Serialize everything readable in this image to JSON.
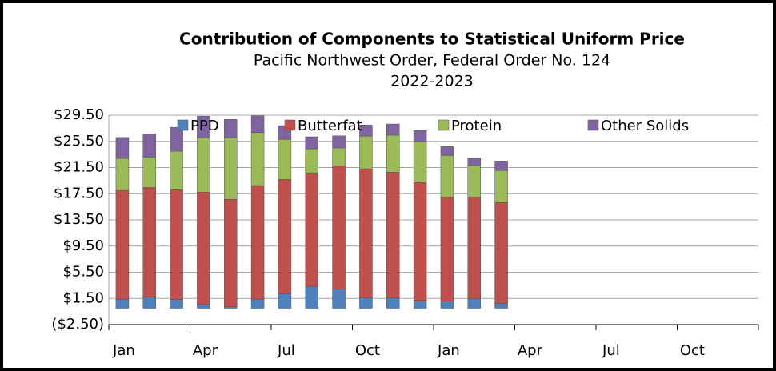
{
  "chart_data": {
    "type": "stacked_bar",
    "title": "Contribution of Components to Statistical Uniform Price",
    "subtitle": "Pacific Northwest Order, Federal Order No. 124",
    "subtitle2": "2022-2023",
    "categories": [
      "Jan",
      null,
      null,
      "Apr",
      null,
      null,
      "Jul",
      null,
      null,
      "Oct",
      null,
      null,
      "Jan",
      null,
      null,
      "Apr",
      null,
      null,
      "Jul",
      null,
      null,
      "Oct",
      null,
      null
    ],
    "series": [
      {
        "name": "PPD",
        "color": "#4f81bd",
        "values": [
          1.35,
          1.7,
          1.35,
          0.6,
          0.25,
          1.35,
          2.2,
          3.3,
          2.95,
          1.6,
          1.6,
          1.2,
          1.1,
          1.45,
          0.75,
          null,
          null,
          null,
          null,
          null,
          null,
          null,
          null,
          null
        ]
      },
      {
        "name": "Butterfat",
        "color": "#c0504d",
        "values": [
          16.65,
          16.75,
          16.75,
          17.15,
          16.4,
          17.4,
          17.5,
          17.4,
          18.75,
          19.7,
          19.2,
          18.0,
          15.9,
          15.55,
          15.4,
          null,
          null,
          null,
          null,
          null,
          null,
          null,
          null,
          null
        ]
      },
      {
        "name": "Protein",
        "color": "#9bbb59",
        "values": [
          4.9,
          4.65,
          5.9,
          8.3,
          9.4,
          8.1,
          6.1,
          3.65,
          2.8,
          5.0,
          5.65,
          6.25,
          6.35,
          4.75,
          4.9,
          null,
          null,
          null,
          null,
          null,
          null,
          null,
          null,
          null
        ]
      },
      {
        "name": "Other Solids",
        "color": "#8064a2",
        "values": [
          3.2,
          3.55,
          3.65,
          3.3,
          2.8,
          2.55,
          2.1,
          1.85,
          1.85,
          1.7,
          1.7,
          1.7,
          1.35,
          1.2,
          1.45,
          null,
          null,
          null,
          null,
          null,
          null,
          null,
          null,
          null
        ]
      }
    ],
    "ylim": [
      -2.5,
      29.5
    ],
    "yticks": [
      {
        "value": -2.5,
        "label": "($2.50)"
      },
      {
        "value": 1.5,
        "label": "$1.50"
      },
      {
        "value": 5.5,
        "label": "$5.50"
      },
      {
        "value": 9.5,
        "label": "$9.50"
      },
      {
        "value": 13.5,
        "label": "$13.50"
      },
      {
        "value": 17.5,
        "label": "$17.50"
      },
      {
        "value": 21.5,
        "label": "$21.50"
      },
      {
        "value": 25.5,
        "label": "$25.50"
      },
      {
        "value": 29.5,
        "label": "$29.50"
      }
    ],
    "grid": true,
    "legend": "top"
  }
}
